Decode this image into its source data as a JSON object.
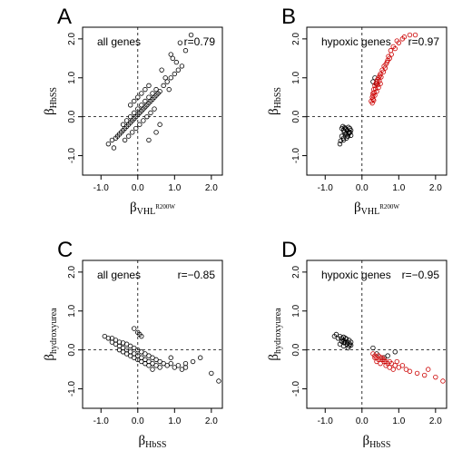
{
  "chart_data": [
    {
      "type": "scatter",
      "panel": "A",
      "annotation": "all genes",
      "correlation": "r=0.79",
      "xlabel": {
        "base": "β",
        "sub": "VHL",
        "sup": "R200W"
      },
      "ylabel": {
        "base": "β",
        "sub": "HbSS"
      },
      "xlim": [
        -1.5,
        2.3
      ],
      "ylim": [
        -1.5,
        2.3
      ],
      "xticks": [
        -1.0,
        0.0,
        1.0,
        2.0
      ],
      "xtick_labels": [
        "-1.0",
        "0.0",
        "1.0",
        "2.0"
      ],
      "yticks": [
        -1.0,
        0.0,
        1.0,
        2.0
      ],
      "ytick_labels": [
        "-1.0",
        "0.0",
        "1.0",
        "2.0"
      ],
      "reference_lines": {
        "x": 0,
        "y": 0
      },
      "series": [
        {
          "color": "#000000",
          "x": [
            -0.6,
            -0.55,
            -0.5,
            -0.45,
            -0.4,
            -0.35,
            -0.3,
            -0.25,
            -0.2,
            -0.15,
            -0.1,
            -0.05,
            0.0,
            0.05,
            0.1,
            0.15,
            0.2,
            0.25,
            0.3,
            0.35,
            0.4,
            0.45,
            0.5,
            0.55,
            0.6,
            -0.4,
            -0.3,
            -0.2,
            -0.1,
            0.0,
            0.1,
            0.2,
            0.3,
            0.4,
            0.5,
            -0.35,
            -0.25,
            -0.15,
            -0.05,
            0.05,
            0.15,
            0.25,
            0.35,
            0.45,
            -0.2,
            -0.1,
            0.0,
            0.1,
            0.2,
            0.3,
            0.7,
            0.8,
            0.9,
            1.0,
            1.1,
            1.2,
            0.65,
            0.75,
            0.85,
            0.95,
            1.05,
            1.3,
            1.45,
            1.15,
            0.9,
            -0.8,
            -0.7,
            -0.65,
            0.3,
            0.5,
            0.6
          ],
          "y": [
            -0.55,
            -0.5,
            -0.45,
            -0.4,
            -0.35,
            -0.3,
            -0.25,
            -0.2,
            -0.15,
            -0.1,
            -0.05,
            0.0,
            0.05,
            0.1,
            0.15,
            0.2,
            0.25,
            0.3,
            0.35,
            0.4,
            0.45,
            0.5,
            0.55,
            0.6,
            0.65,
            -0.2,
            -0.1,
            0.0,
            0.1,
            0.2,
            0.3,
            0.4,
            0.5,
            0.6,
            0.7,
            -0.6,
            -0.5,
            -0.4,
            -0.3,
            -0.2,
            -0.1,
            0.0,
            0.1,
            0.2,
            0.3,
            0.4,
            0.5,
            0.6,
            0.7,
            0.8,
            0.8,
            0.9,
            1.0,
            1.1,
            1.2,
            1.3,
            1.2,
            1.0,
            0.7,
            1.5,
            1.4,
            1.7,
            2.1,
            1.9,
            1.6,
            -0.7,
            -0.6,
            -0.8,
            -0.6,
            -0.4,
            -0.2
          ]
        }
      ]
    },
    {
      "type": "scatter",
      "panel": "B",
      "annotation": "hypoxic genes",
      "correlation": "r=0.97",
      "xlabel": {
        "base": "β",
        "sub": "VHL",
        "sup": "R200W"
      },
      "ylabel": {
        "base": "β",
        "sub": "HbSS"
      },
      "xlim": [
        -1.5,
        2.3
      ],
      "ylim": [
        -1.5,
        2.3
      ],
      "xticks": [
        -1.0,
        0.0,
        1.0,
        2.0
      ],
      "xtick_labels": [
        "-1.0",
        "0.0",
        "1.0",
        "2.0"
      ],
      "yticks": [
        -1.0,
        0.0,
        1.0,
        2.0
      ],
      "ytick_labels": [
        "-1.0",
        "0.0",
        "1.0",
        "2.0"
      ],
      "reference_lines": {
        "x": 0,
        "y": 0
      },
      "series": [
        {
          "color": "#000000",
          "x": [
            -0.55,
            -0.5,
            -0.48,
            -0.45,
            -0.42,
            -0.4,
            -0.38,
            -0.35,
            -0.33,
            -0.3,
            -0.55,
            -0.5,
            -0.45,
            -0.4,
            -0.35,
            -0.3,
            -0.52,
            -0.47,
            -0.43,
            -0.37,
            -0.32,
            -0.5,
            -0.42,
            -0.6,
            -0.58,
            0.3,
            0.35,
            0.4
          ],
          "y": [
            -0.3,
            -0.35,
            -0.4,
            -0.3,
            -0.45,
            -0.35,
            -0.5,
            -0.4,
            -0.3,
            -0.35,
            -0.5,
            -0.55,
            -0.45,
            -0.5,
            -0.42,
            -0.48,
            -0.25,
            -0.28,
            -0.32,
            -0.27,
            -0.4,
            -0.6,
            -0.55,
            -0.7,
            -0.62,
            0.9,
            1.0,
            0.85
          ]
        },
        {
          "color": "#cc0000",
          "x": [
            0.25,
            0.28,
            0.3,
            0.32,
            0.35,
            0.38,
            0.4,
            0.42,
            0.45,
            0.48,
            0.5,
            0.55,
            0.6,
            0.65,
            0.7,
            0.75,
            0.8,
            0.9,
            1.0,
            1.1,
            0.3,
            0.35,
            0.4,
            0.45,
            0.5,
            0.3,
            0.33,
            0.37,
            0.43,
            0.47,
            0.52,
            0.58,
            0.63,
            0.68,
            0.72,
            0.78,
            0.85,
            1.15,
            1.3,
            1.45,
            0.95,
            0.28,
            0.32
          ],
          "y": [
            0.4,
            0.5,
            0.6,
            0.7,
            0.8,
            0.85,
            0.9,
            0.95,
            1.0,
            1.05,
            1.1,
            1.2,
            1.3,
            1.35,
            1.45,
            1.5,
            1.6,
            1.75,
            1.9,
            2.0,
            0.45,
            0.55,
            0.65,
            0.75,
            0.85,
            0.55,
            0.62,
            0.72,
            0.82,
            0.92,
            1.02,
            1.15,
            1.25,
            1.4,
            1.55,
            1.7,
            1.8,
            2.05,
            2.1,
            2.1,
            1.95,
            0.35,
            0.42
          ]
        }
      ]
    },
    {
      "type": "scatter",
      "panel": "C",
      "annotation": "all genes",
      "correlation": "r=−0.85",
      "xlabel": {
        "base": "β",
        "sub": "HbSS"
      },
      "ylabel": {
        "base": "β",
        "sub": "hydroxyurea"
      },
      "xlim": [
        -1.5,
        2.3
      ],
      "ylim": [
        -1.5,
        2.3
      ],
      "xticks": [
        -1.0,
        0.0,
        1.0,
        2.0
      ],
      "xtick_labels": [
        "-1.0",
        "0.0",
        "1.0",
        "2.0"
      ],
      "yticks": [
        -1.0,
        0.0,
        1.0,
        2.0
      ],
      "ytick_labels": [
        "-1.0",
        "0.0",
        "1.0",
        "2.0"
      ],
      "reference_lines": {
        "x": 0,
        "y": 0
      },
      "series": [
        {
          "color": "#000000",
          "x": [
            -0.9,
            -0.8,
            -0.7,
            -0.6,
            -0.5,
            -0.4,
            -0.3,
            -0.2,
            -0.1,
            0.0,
            0.1,
            0.2,
            0.3,
            0.4,
            0.5,
            0.6,
            0.7,
            0.8,
            -0.7,
            -0.6,
            -0.5,
            -0.4,
            -0.3,
            -0.2,
            -0.1,
            0.0,
            0.1,
            0.2,
            0.3,
            0.4,
            0.5,
            0.6,
            -0.5,
            -0.4,
            -0.3,
            -0.2,
            -0.1,
            0.0,
            0.1,
            0.2,
            0.3,
            0.4,
            -0.1,
            0.0,
            0.05,
            0.1,
            0.9,
            1.0,
            1.1,
            1.2,
            1.3,
            1.5,
            1.7,
            2.0,
            2.2,
            0.9,
            1.3
          ],
          "y": [
            0.35,
            0.3,
            0.3,
            0.25,
            0.2,
            0.18,
            0.15,
            0.1,
            0.05,
            0.0,
            -0.05,
            -0.1,
            -0.15,
            -0.2,
            -0.25,
            -0.3,
            -0.35,
            -0.4,
            0.2,
            0.15,
            0.1,
            0.05,
            0.0,
            -0.05,
            -0.1,
            -0.15,
            -0.2,
            -0.25,
            -0.3,
            -0.35,
            -0.4,
            -0.45,
            0.0,
            -0.05,
            -0.1,
            -0.15,
            -0.2,
            -0.25,
            -0.3,
            -0.35,
            -0.4,
            -0.5,
            0.55,
            0.45,
            0.4,
            0.35,
            -0.35,
            -0.45,
            -0.4,
            -0.5,
            -0.35,
            -0.3,
            -0.2,
            -0.6,
            -0.8,
            -0.2,
            -0.45
          ]
        }
      ]
    },
    {
      "type": "scatter",
      "panel": "D",
      "annotation": "hypoxic genes",
      "correlation": "r=−0.95",
      "xlabel": {
        "base": "β",
        "sub": "HbSS"
      },
      "ylabel": {
        "base": "β",
        "sub": "hydroxyurea"
      },
      "xlim": [
        -1.5,
        2.3
      ],
      "ylim": [
        -1.5,
        2.3
      ],
      "xticks": [
        -1.0,
        0.0,
        1.0,
        2.0
      ],
      "xtick_labels": [
        "-1.0",
        "0.0",
        "1.0",
        "2.0"
      ],
      "yticks": [
        -1.0,
        0.0,
        1.0,
        2.0
      ],
      "ytick_labels": [
        "-1.0",
        "0.0",
        "1.0",
        "2.0"
      ],
      "reference_lines": {
        "x": 0,
        "y": 0
      },
      "series": [
        {
          "color": "#000000",
          "x": [
            -0.75,
            -0.7,
            -0.65,
            -0.6,
            -0.55,
            -0.5,
            -0.45,
            -0.4,
            -0.35,
            -0.3,
            -0.6,
            -0.5,
            -0.45,
            -0.4,
            -0.35,
            -0.3,
            -0.55,
            -0.48,
            -0.42,
            -0.38,
            -0.33,
            -0.5,
            0.3,
            0.4,
            0.6,
            0.7,
            0.9
          ],
          "y": [
            0.35,
            0.4,
            0.3,
            0.35,
            0.3,
            0.25,
            0.3,
            0.2,
            0.25,
            0.2,
            0.15,
            0.1,
            0.2,
            0.15,
            0.1,
            0.12,
            0.22,
            0.18,
            0.28,
            0.05,
            0.15,
            0.33,
            0.05,
            -0.1,
            -0.2,
            -0.15,
            -0.05
          ]
        },
        {
          "color": "#cc0000",
          "x": [
            0.3,
            0.35,
            0.4,
            0.45,
            0.5,
            0.55,
            0.6,
            0.65,
            0.7,
            0.75,
            0.8,
            0.9,
            1.0,
            1.1,
            1.2,
            1.3,
            1.5,
            1.7,
            1.8,
            2.0,
            2.2,
            0.4,
            0.5,
            0.6,
            0.45,
            0.55,
            0.65,
            0.35,
            0.75,
            0.85,
            0.95
          ],
          "y": [
            -0.1,
            -0.15,
            -0.2,
            -0.25,
            -0.2,
            -0.25,
            -0.3,
            -0.3,
            -0.35,
            -0.3,
            -0.35,
            -0.4,
            -0.45,
            -0.4,
            -0.5,
            -0.55,
            -0.6,
            -0.65,
            -0.5,
            -0.7,
            -0.8,
            -0.3,
            -0.35,
            -0.25,
            -0.15,
            -0.2,
            -0.4,
            -0.2,
            -0.45,
            -0.5,
            -0.3
          ]
        }
      ]
    }
  ]
}
